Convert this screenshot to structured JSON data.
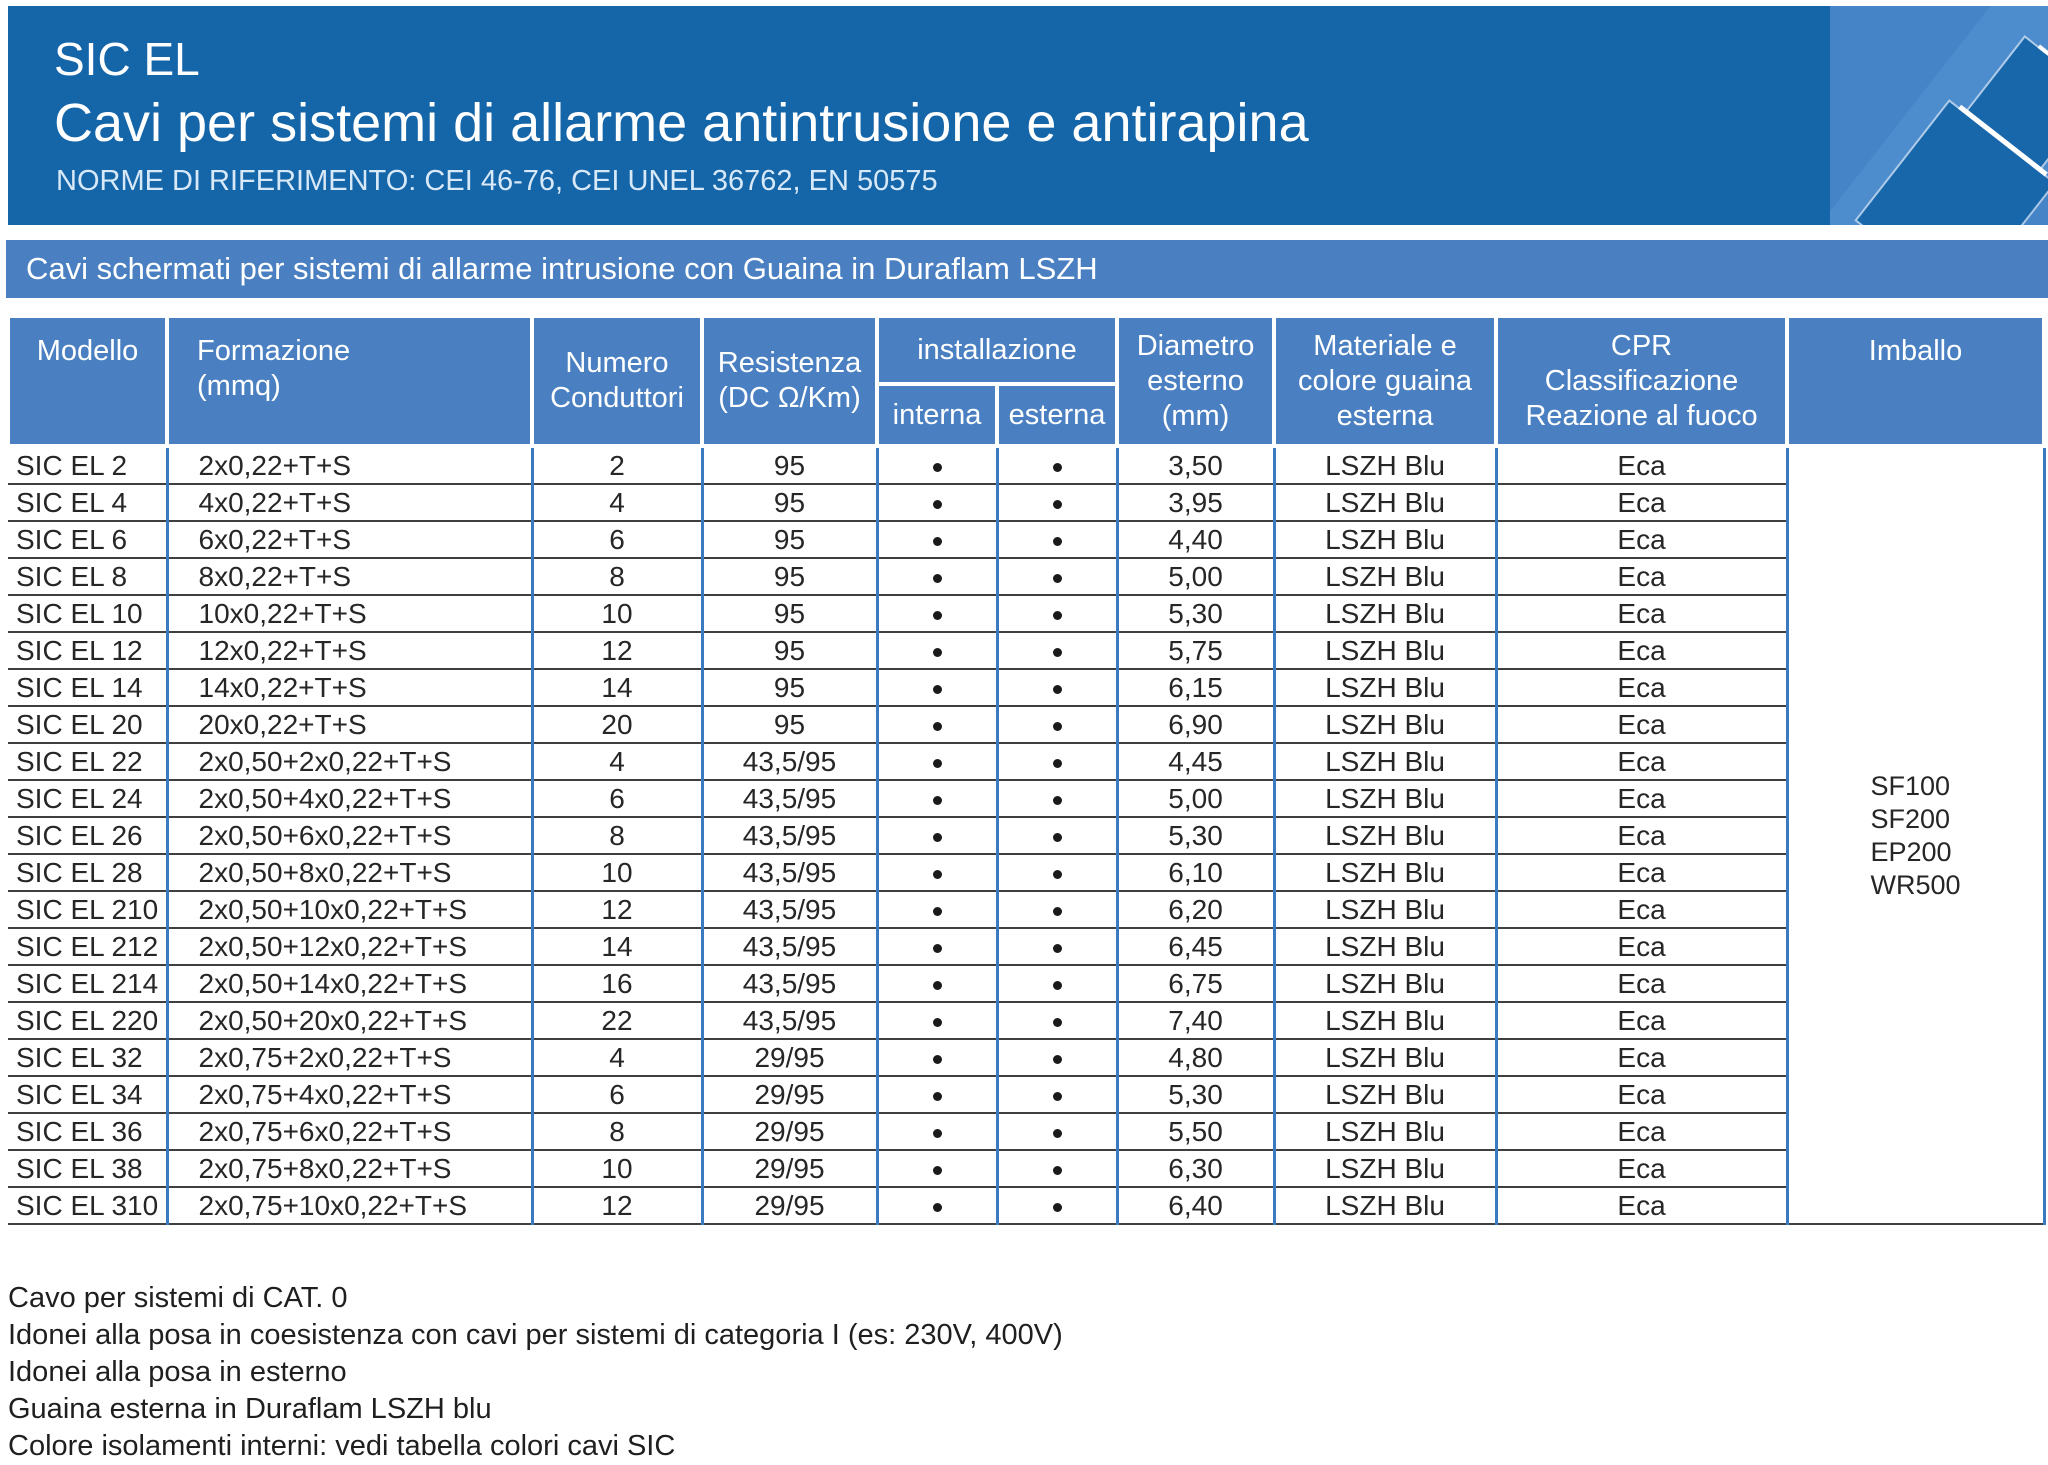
{
  "header": {
    "product": "SIC EL",
    "title": "Cavi per sistemi di allarme antintrusione e antirapina",
    "norms": "NORME DI RIFERIMENTO: CEI 46-76, CEI UNEL 36762, EN 50575"
  },
  "banner": {
    "text": "Cavi schermati per sistemi di allarme intrusione con Guaina in Duraflam LSZH"
  },
  "table": {
    "headers": {
      "modello": "Modello",
      "formazione": "Formazione\n(mmq)",
      "numero_conduttori": "Numero\nConduttori",
      "resistenza": "Resistenza\n(DC Ω/Km)",
      "installazione": "installazione",
      "interna": "interna",
      "esterna": "esterna",
      "diametro": "Diametro\nesterno\n(mm)",
      "materiale": "Materiale e\ncolore guaina\nesterna",
      "cpr": "CPR\nClassificazione\nReazione al fuoco",
      "imballo": "Imballo"
    },
    "rows": [
      {
        "modello": "SIC EL 2",
        "formazione": "2x0,22+T+S",
        "conduttori": "2",
        "resistenza": "95",
        "interna": true,
        "esterna": true,
        "diametro": "3,50",
        "guaina": "LSZH Blu",
        "cpr": "Eca"
      },
      {
        "modello": "SIC EL 4",
        "formazione": "4x0,22+T+S",
        "conduttori": "4",
        "resistenza": "95",
        "interna": true,
        "esterna": true,
        "diametro": "3,95",
        "guaina": "LSZH Blu",
        "cpr": "Eca"
      },
      {
        "modello": "SIC EL 6",
        "formazione": "6x0,22+T+S",
        "conduttori": "6",
        "resistenza": "95",
        "interna": true,
        "esterna": true,
        "diametro": "4,40",
        "guaina": "LSZH Blu",
        "cpr": "Eca"
      },
      {
        "modello": "SIC EL 8",
        "formazione": "8x0,22+T+S",
        "conduttori": "8",
        "resistenza": "95",
        "interna": true,
        "esterna": true,
        "diametro": "5,00",
        "guaina": "LSZH Blu",
        "cpr": "Eca"
      },
      {
        "modello": "SIC EL 10",
        "formazione": "10x0,22+T+S",
        "conduttori": "10",
        "resistenza": "95",
        "interna": true,
        "esterna": true,
        "diametro": "5,30",
        "guaina": "LSZH Blu",
        "cpr": "Eca"
      },
      {
        "modello": "SIC EL 12",
        "formazione": "12x0,22+T+S",
        "conduttori": "12",
        "resistenza": "95",
        "interna": true,
        "esterna": true,
        "diametro": "5,75",
        "guaina": "LSZH Blu",
        "cpr": "Eca"
      },
      {
        "modello": "SIC EL 14",
        "formazione": "14x0,22+T+S",
        "conduttori": "14",
        "resistenza": "95",
        "interna": true,
        "esterna": true,
        "diametro": "6,15",
        "guaina": "LSZH Blu",
        "cpr": "Eca"
      },
      {
        "modello": "SIC EL 20",
        "formazione": "20x0,22+T+S",
        "conduttori": "20",
        "resistenza": "95",
        "interna": true,
        "esterna": true,
        "diametro": "6,90",
        "guaina": "LSZH Blu",
        "cpr": "Eca"
      },
      {
        "modello": "SIC EL 22",
        "formazione": "2x0,50+2x0,22+T+S",
        "conduttori": "4",
        "resistenza": "43,5/95",
        "interna": true,
        "esterna": true,
        "diametro": "4,45",
        "guaina": "LSZH Blu",
        "cpr": "Eca"
      },
      {
        "modello": "SIC EL 24",
        "formazione": "2x0,50+4x0,22+T+S",
        "conduttori": "6",
        "resistenza": "43,5/95",
        "interna": true,
        "esterna": true,
        "diametro": "5,00",
        "guaina": "LSZH Blu",
        "cpr": "Eca"
      },
      {
        "modello": "SIC EL 26",
        "formazione": "2x0,50+6x0,22+T+S",
        "conduttori": "8",
        "resistenza": "43,5/95",
        "interna": true,
        "esterna": true,
        "diametro": "5,30",
        "guaina": "LSZH Blu",
        "cpr": "Eca"
      },
      {
        "modello": "SIC EL 28",
        "formazione": "2x0,50+8x0,22+T+S",
        "conduttori": "10",
        "resistenza": "43,5/95",
        "interna": true,
        "esterna": true,
        "diametro": "6,10",
        "guaina": "LSZH Blu",
        "cpr": "Eca"
      },
      {
        "modello": "SIC EL 210",
        "formazione": "2x0,50+10x0,22+T+S",
        "conduttori": "12",
        "resistenza": "43,5/95",
        "interna": true,
        "esterna": true,
        "diametro": "6,20",
        "guaina": "LSZH Blu",
        "cpr": "Eca"
      },
      {
        "modello": "SIC EL 212",
        "formazione": "2x0,50+12x0,22+T+S",
        "conduttori": "14",
        "resistenza": "43,5/95",
        "interna": true,
        "esterna": true,
        "diametro": "6,45",
        "guaina": "LSZH Blu",
        "cpr": "Eca"
      },
      {
        "modello": "SIC EL 214",
        "formazione": "2x0,50+14x0,22+T+S",
        "conduttori": "16",
        "resistenza": "43,5/95",
        "interna": true,
        "esterna": true,
        "diametro": "6,75",
        "guaina": "LSZH Blu",
        "cpr": "Eca"
      },
      {
        "modello": "SIC EL 220",
        "formazione": "2x0,50+20x0,22+T+S",
        "conduttori": "22",
        "resistenza": "43,5/95",
        "interna": true,
        "esterna": true,
        "diametro": "7,40",
        "guaina": "LSZH Blu",
        "cpr": "Eca"
      },
      {
        "modello": "SIC EL 32",
        "formazione": "2x0,75+2x0,22+T+S",
        "conduttori": "4",
        "resistenza": "29/95",
        "interna": true,
        "esterna": true,
        "diametro": "4,80",
        "guaina": "LSZH Blu",
        "cpr": "Eca"
      },
      {
        "modello": "SIC EL 34",
        "formazione": "2x0,75+4x0,22+T+S",
        "conduttori": "6",
        "resistenza": "29/95",
        "interna": true,
        "esterna": true,
        "diametro": "5,30",
        "guaina": "LSZH Blu",
        "cpr": "Eca"
      },
      {
        "modello": "SIC EL 36",
        "formazione": "2x0,75+6x0,22+T+S",
        "conduttori": "8",
        "resistenza": "29/95",
        "interna": true,
        "esterna": true,
        "diametro": "5,50",
        "guaina": "LSZH Blu",
        "cpr": "Eca"
      },
      {
        "modello": "SIC EL 38",
        "formazione": "2x0,75+8x0,22+T+S",
        "conduttori": "10",
        "resistenza": "29/95",
        "interna": true,
        "esterna": true,
        "diametro": "6,30",
        "guaina": "LSZH Blu",
        "cpr": "Eca"
      },
      {
        "modello": "SIC EL 310",
        "formazione": "2x0,75+10x0,22+T+S",
        "conduttori": "12",
        "resistenza": "29/95",
        "interna": true,
        "esterna": true,
        "diametro": "6,40",
        "guaina": "LSZH Blu",
        "cpr": "Eca"
      }
    ],
    "imballo_values": [
      "SF100",
      "SF200",
      "EP200",
      "WR500"
    ]
  },
  "notes": [
    "Cavo per sistemi di CAT. 0",
    "Idonei alla posa in coesistenza con cavi per sistemi di categoria I (es: 230V, 400V)",
    "Idonei alla posa in esterno",
    "Guaina esterna in Duraflam LSZH blu",
    "Colore isolamenti interni: vedi tabella colori cavi SIC"
  ],
  "colors": {
    "header_blue": "#1565a9",
    "panel_blue": "#4a80c1",
    "grid_blue": "#3a7abf",
    "graphic_light_blue": "#4484c7",
    "row_line": "#3f3f3f"
  }
}
